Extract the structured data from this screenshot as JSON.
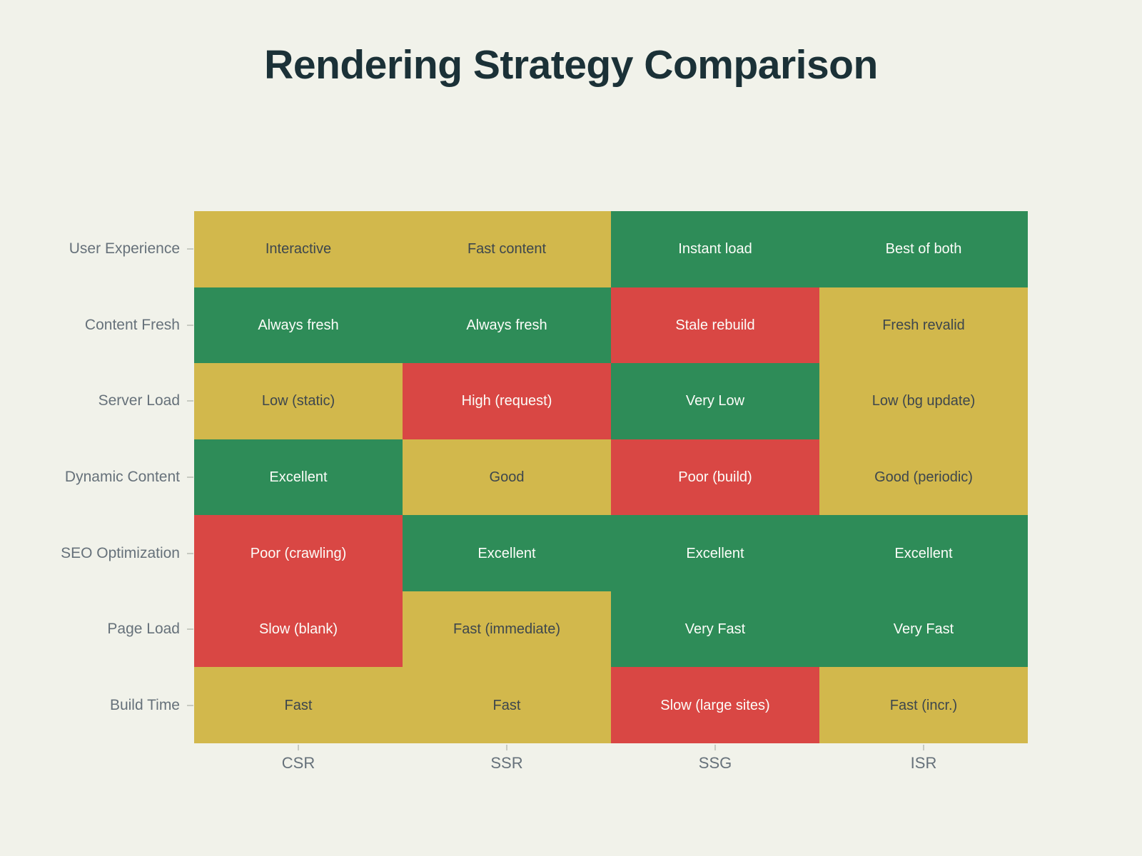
{
  "chart_data": {
    "type": "heatmap",
    "title": "Rendering Strategy Comparison",
    "x_categories": [
      "CSR",
      "SSR",
      "SSG",
      "ISR"
    ],
    "y_categories": [
      "User Experience",
      "Content Fresh",
      "Server Load",
      "Dynamic Content",
      "SEO Optimization",
      "Page Load",
      "Build Time"
    ],
    "cells": [
      [
        {
          "label": "Interactive",
          "level": "ok"
        },
        {
          "label": "Fast content",
          "level": "ok"
        },
        {
          "label": "Instant load",
          "level": "good"
        },
        {
          "label": "Best of both",
          "level": "good"
        }
      ],
      [
        {
          "label": "Always fresh",
          "level": "good"
        },
        {
          "label": "Always fresh",
          "level": "good"
        },
        {
          "label": "Stale rebuild",
          "level": "bad"
        },
        {
          "label": "Fresh revalid",
          "level": "ok"
        }
      ],
      [
        {
          "label": "Low (static)",
          "level": "ok"
        },
        {
          "label": "High (request)",
          "level": "bad"
        },
        {
          "label": "Very Low",
          "level": "good"
        },
        {
          "label": "Low (bg update)",
          "level": "ok"
        }
      ],
      [
        {
          "label": "Excellent",
          "level": "good"
        },
        {
          "label": "Good",
          "level": "ok"
        },
        {
          "label": "Poor (build)",
          "level": "bad"
        },
        {
          "label": "Good (periodic)",
          "level": "ok"
        }
      ],
      [
        {
          "label": "Poor (crawling)",
          "level": "bad"
        },
        {
          "label": "Excellent",
          "level": "good"
        },
        {
          "label": "Excellent",
          "level": "good"
        },
        {
          "label": "Excellent",
          "level": "good"
        }
      ],
      [
        {
          "label": "Slow (blank)",
          "level": "bad"
        },
        {
          "label": "Fast (immediate)",
          "level": "ok"
        },
        {
          "label": "Very Fast",
          "level": "good"
        },
        {
          "label": "Very Fast",
          "level": "good"
        }
      ],
      [
        {
          "label": "Fast",
          "level": "ok"
        },
        {
          "label": "Fast",
          "level": "ok"
        },
        {
          "label": "Slow (large sites)",
          "level": "bad"
        },
        {
          "label": "Fast (incr.)",
          "level": "ok"
        }
      ]
    ],
    "colors": {
      "good": "#2e8c58",
      "ok": "#d2b84c",
      "bad": "#d94744"
    },
    "cell_text_colors": {
      "on_good": "#fcfdf9",
      "on_ok": "#3d464d",
      "on_bad": "#fcfdf9"
    },
    "layout": {
      "background": "#f1f2ea",
      "title_color": "#1b3137",
      "axis_label_color": "#66717a",
      "tick_color": "#c7cac1",
      "legend": "none",
      "grid": "off",
      "x_axis_position": "bottom",
      "y_axis_position": "left"
    }
  }
}
